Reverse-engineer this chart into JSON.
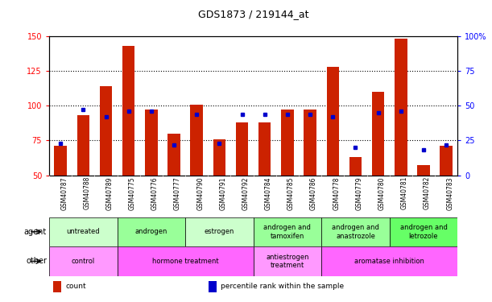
{
  "title": "GDS1873 / 219144_at",
  "samples": [
    "GSM40787",
    "GSM40788",
    "GSM40789",
    "GSM40775",
    "GSM40776",
    "GSM40777",
    "GSM40790",
    "GSM40791",
    "GSM40792",
    "GSM40784",
    "GSM40785",
    "GSM40786",
    "GSM40778",
    "GSM40779",
    "GSM40780",
    "GSM40781",
    "GSM40782",
    "GSM40783"
  ],
  "counts": [
    71,
    93,
    114,
    143,
    97,
    80,
    101,
    76,
    88,
    88,
    97,
    97,
    128,
    63,
    110,
    148,
    57,
    71
  ],
  "percentile_ranks": [
    23,
    47,
    42,
    46,
    46,
    22,
    44,
    23,
    44,
    44,
    44,
    44,
    42,
    20,
    45,
    46,
    18,
    22
  ],
  "ylim_left": [
    50,
    150
  ],
  "ylim_right": [
    0,
    100
  ],
  "yticks_left": [
    50,
    75,
    100,
    125,
    150
  ],
  "yticks_right": [
    0,
    25,
    50,
    75,
    100
  ],
  "bar_color": "#cc2200",
  "dot_color": "#0000cc",
  "bg_color": "#ffffff",
  "tick_bg": "#cccccc",
  "agent_groups": [
    {
      "label": "untreated",
      "start": 0,
      "end": 3,
      "color": "#ccffcc"
    },
    {
      "label": "androgen",
      "start": 3,
      "end": 6,
      "color": "#99ff99"
    },
    {
      "label": "estrogen",
      "start": 6,
      "end": 9,
      "color": "#ccffcc"
    },
    {
      "label": "androgen and\ntamoxifen",
      "start": 9,
      "end": 12,
      "color": "#99ff99"
    },
    {
      "label": "androgen and\nanastrozole",
      "start": 12,
      "end": 15,
      "color": "#99ff99"
    },
    {
      "label": "androgen and\nletrozole",
      "start": 15,
      "end": 18,
      "color": "#66ff66"
    }
  ],
  "other_groups": [
    {
      "label": "control",
      "start": 0,
      "end": 3,
      "color": "#ff99ff"
    },
    {
      "label": "hormone treatment",
      "start": 3,
      "end": 9,
      "color": "#ff66ff"
    },
    {
      "label": "antiestrogen\ntreatment",
      "start": 9,
      "end": 12,
      "color": "#ff99ff"
    },
    {
      "label": "aromatase inhibition",
      "start": 12,
      "end": 18,
      "color": "#ff66ff"
    }
  ],
  "legend_items": [
    {
      "label": "count",
      "color": "#cc2200"
    },
    {
      "label": "percentile rank within the sample",
      "color": "#0000cc"
    }
  ]
}
